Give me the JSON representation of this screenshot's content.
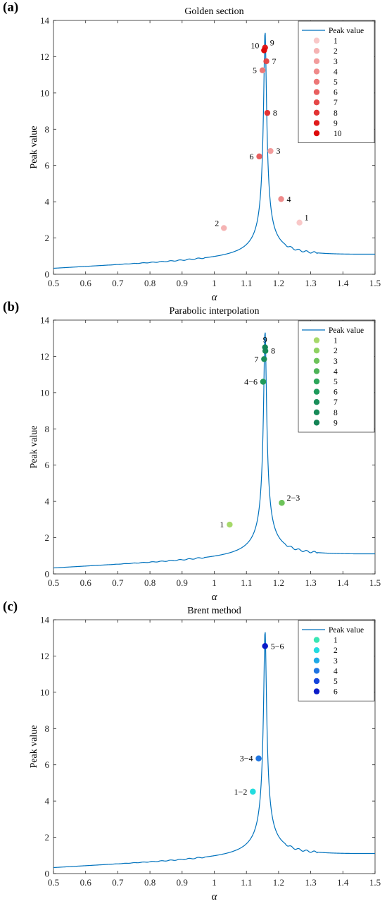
{
  "figure": {
    "panel_letters": [
      "(a)",
      "(b)",
      "(c)"
    ]
  },
  "chart_data": [
    {
      "type": "line",
      "letter": "(a)",
      "title": "Golden section",
      "xlabel": "α",
      "ylabel": "Peak value",
      "xlim": [
        0.5,
        1.5
      ],
      "ylim": [
        0,
        14
      ],
      "xticks": [
        "0.5",
        "0.6",
        "0.7",
        "0.8",
        "0.9",
        "1",
        "1.1",
        "1.2",
        "1.3",
        "1.4",
        "1.5"
      ],
      "yticks": [
        "0",
        "2",
        "4",
        "6",
        "8",
        "10",
        "12",
        "14"
      ],
      "grid": false,
      "legend_position": "top-right",
      "curve": {
        "name": "Peak value",
        "color": "#0072BD"
      },
      "series": [
        {
          "name": "1",
          "x": 1.265,
          "y": 2.85,
          "color": "#F9C8C8",
          "label": "1",
          "label_pos": "upper-right"
        },
        {
          "name": "2",
          "x": 1.03,
          "y": 2.55,
          "color": "#F5B3B3",
          "label": "2",
          "label_pos": "upper-left"
        },
        {
          "name": "3",
          "x": 1.175,
          "y": 6.8,
          "color": "#F29C9C",
          "label": "3",
          "label_pos": "right"
        },
        {
          "name": "4",
          "x": 1.208,
          "y": 4.15,
          "color": "#EF8A8A",
          "label": "4",
          "label_pos": "right"
        },
        {
          "name": "5",
          "x": 1.15,
          "y": 11.25,
          "color": "#EC7777",
          "label": "5",
          "label_pos": "left"
        },
        {
          "name": "6",
          "x": 1.14,
          "y": 6.5,
          "color": "#E85F5F",
          "label": "6",
          "label_pos": "left"
        },
        {
          "name": "7",
          "x": 1.162,
          "y": 11.75,
          "color": "#E54848",
          "label": "7",
          "label_pos": "right"
        },
        {
          "name": "8",
          "x": 1.165,
          "y": 8.9,
          "color": "#E23333",
          "label": "8",
          "label_pos": "right"
        },
        {
          "name": "9",
          "x": 1.158,
          "y": 12.5,
          "color": "#E01B1B",
          "label": "9",
          "label_pos": "upper-right"
        },
        {
          "name": "10",
          "x": 1.155,
          "y": 12.35,
          "color": "#DD0A0A",
          "label": "10",
          "label_pos": "upper-left"
        }
      ]
    },
    {
      "type": "line",
      "letter": "(b)",
      "title": "Parabolic interpolation",
      "xlabel": "α",
      "ylabel": "Peak value",
      "xlim": [
        0.5,
        1.5
      ],
      "ylim": [
        0,
        14
      ],
      "xticks": [
        "0.5",
        "0.6",
        "0.7",
        "0.8",
        "0.9",
        "1",
        "1.1",
        "1.2",
        "1.3",
        "1.4",
        "1.5"
      ],
      "yticks": [
        "0",
        "2",
        "4",
        "6",
        "8",
        "10",
        "12",
        "14"
      ],
      "grid": false,
      "legend_position": "top-right",
      "curve": {
        "name": "Peak value",
        "color": "#0072BD"
      },
      "series": [
        {
          "name": "1",
          "x": 1.048,
          "y": 2.72,
          "color": "#A6D96A",
          "label": "1",
          "label_pos": "left"
        },
        {
          "name": "2",
          "x": 1.21,
          "y": 3.92,
          "color": "#8FD262",
          "label": "2−3",
          "label_pos": "upper-right"
        },
        {
          "name": "3",
          "x": 1.21,
          "y": 3.92,
          "color": "#6DC35A",
          "label": "",
          "label_pos": "none"
        },
        {
          "name": "4",
          "x": 1.152,
          "y": 10.6,
          "color": "#4DB357",
          "label": "4−6",
          "label_pos": "left"
        },
        {
          "name": "5",
          "x": 1.152,
          "y": 10.6,
          "color": "#2DA65A",
          "label": "",
          "label_pos": "none"
        },
        {
          "name": "6",
          "x": 1.152,
          "y": 10.6,
          "color": "#1E9A5B",
          "label": "",
          "label_pos": "none"
        },
        {
          "name": "7",
          "x": 1.155,
          "y": 11.85,
          "color": "#1A8E5A",
          "label": "7",
          "label_pos": "left"
        },
        {
          "name": "8",
          "x": 1.159,
          "y": 12.3,
          "color": "#178A58",
          "label": "8",
          "label_pos": "right"
        },
        {
          "name": "9",
          "x": 1.158,
          "y": 12.5,
          "color": "#148355",
          "label": "9",
          "label_pos": "above"
        }
      ]
    },
    {
      "type": "line",
      "letter": "(c)",
      "title": "Brent method",
      "xlabel": "α",
      "ylabel": "Peak value",
      "xlim": [
        0.5,
        1.5
      ],
      "ylim": [
        0,
        14
      ],
      "xticks": [
        "0.5",
        "0.6",
        "0.7",
        "0.8",
        "0.9",
        "1",
        "1.1",
        "1.2",
        "1.3",
        "1.4",
        "1.5"
      ],
      "yticks": [
        "0",
        "2",
        "4",
        "6",
        "8",
        "10",
        "12",
        "14"
      ],
      "grid": false,
      "legend_position": "top-right",
      "curve": {
        "name": "Peak value",
        "color": "#0072BD"
      },
      "series": [
        {
          "name": "1",
          "x": 1.12,
          "y": 4.52,
          "color": "#39E6B4",
          "label": "1−2",
          "label_pos": "left"
        },
        {
          "name": "2",
          "x": 1.12,
          "y": 4.52,
          "color": "#22DCE0",
          "label": "",
          "label_pos": "none"
        },
        {
          "name": "3",
          "x": 1.138,
          "y": 6.35,
          "color": "#1EA9E6",
          "label": "3−4",
          "label_pos": "left"
        },
        {
          "name": "4",
          "x": 1.138,
          "y": 6.35,
          "color": "#1F74E2",
          "label": "",
          "label_pos": "none"
        },
        {
          "name": "5",
          "x": 1.158,
          "y": 12.55,
          "color": "#1444DC",
          "label": "5−6",
          "label_pos": "right"
        },
        {
          "name": "6",
          "x": 1.158,
          "y": 12.55,
          "color": "#0B1CC8",
          "label": "",
          "label_pos": "none"
        }
      ]
    }
  ]
}
